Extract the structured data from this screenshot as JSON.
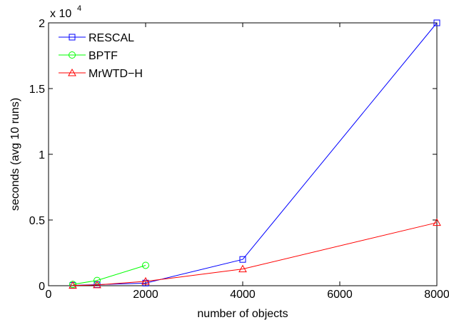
{
  "chart_data": {
    "type": "line",
    "xlabel": "number of objects",
    "ylabel": "seconds (avg 10 runs)",
    "xlim": [
      0,
      8000
    ],
    "ylim": [
      0,
      20000
    ],
    "x_ticks": [
      0,
      2000,
      4000,
      6000,
      8000
    ],
    "x_tick_labels": [
      "0",
      "2000",
      "4000",
      "6000",
      "8000"
    ],
    "y_ticks": [
      0,
      5000,
      10000,
      15000,
      20000
    ],
    "y_tick_labels": [
      "0",
      "0.5",
      "1",
      "1.5",
      "2"
    ],
    "y_multiplier_base": "x 10",
    "y_multiplier_exp": "4",
    "grid": false,
    "legend_position": "top-left",
    "series": [
      {
        "name": "RESCAL",
        "color": "#0000ff",
        "marker": "square",
        "x": [
          500,
          1000,
          2000,
          4000,
          8000
        ],
        "y": [
          30,
          80,
          200,
          2000,
          20000
        ]
      },
      {
        "name": "BPTF",
        "color": "#00ff00",
        "marker": "circle",
        "x": [
          500,
          1000,
          2000
        ],
        "y": [
          100,
          400,
          1550
        ]
      },
      {
        "name": "MrWTD−H",
        "color": "#ff0000",
        "marker": "triangle",
        "x": [
          500,
          1000,
          2000,
          4000,
          8000
        ],
        "y": [
          20,
          60,
          330,
          1270,
          4800
        ]
      }
    ]
  }
}
